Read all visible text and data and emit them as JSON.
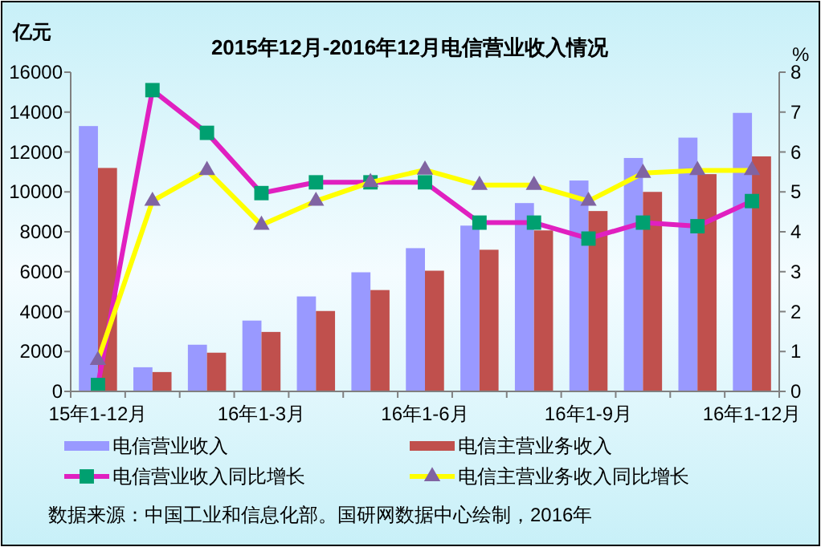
{
  "chart_data": {
    "type": "bar",
    "title": "2015年12月-2016年12月电信营业收入情况",
    "ylabel": "亿元",
    "y2label": "%",
    "categories": [
      "15年1-12月",
      null,
      null,
      "16年1-3月",
      null,
      null,
      "16年1-6月",
      null,
      null,
      "16年1-9月",
      null,
      null,
      "16年1-12月"
    ],
    "series": [
      {
        "name": "电信营业收入",
        "color": "#9999ff",
        "values": [
          13300,
          1210,
          2340,
          3550,
          4760,
          5970,
          7180,
          8310,
          9440,
          10570,
          11700,
          12720,
          13960
        ]
      },
      {
        "name": "电信主营业务收入",
        "color": "#c0504d",
        "values": [
          11200,
          970,
          1940,
          2980,
          4030,
          5080,
          6050,
          7100,
          8070,
          9040,
          10000,
          10890,
          11780
        ]
      },
      {
        "name": "电信营业收入同比增长",
        "type": "line",
        "axis": "y2",
        "marker": "square",
        "color": "#e020c0",
        "values": [
          0.16,
          7.55,
          6.48,
          4.97,
          5.24,
          5.24,
          5.24,
          4.23,
          4.23,
          3.83,
          4.23,
          4.14,
          4.77
        ]
      },
      {
        "name": "电信主营业务收入同比增长",
        "type": "line",
        "axis": "y2",
        "marker": "triangle",
        "color": "#ffff00",
        "values": [
          0.78,
          4.77,
          5.54,
          4.17,
          4.77,
          5.24,
          5.55,
          5.17,
          5.17,
          4.77,
          5.47,
          5.54,
          5.54
        ]
      }
    ],
    "ylim": [
      0,
      16000
    ],
    "yticks": [
      0,
      2000,
      4000,
      6000,
      8000,
      10000,
      12000,
      14000,
      16000
    ],
    "y2lim": [
      0,
      8
    ],
    "y2ticks": [
      0,
      1,
      2,
      3,
      4,
      5,
      6,
      7,
      8
    ],
    "legend": "bottom",
    "grid": false,
    "annotations": [
      "数据来源：中国工业和信息化部。国研网数据中心绘制，2016年"
    ]
  }
}
